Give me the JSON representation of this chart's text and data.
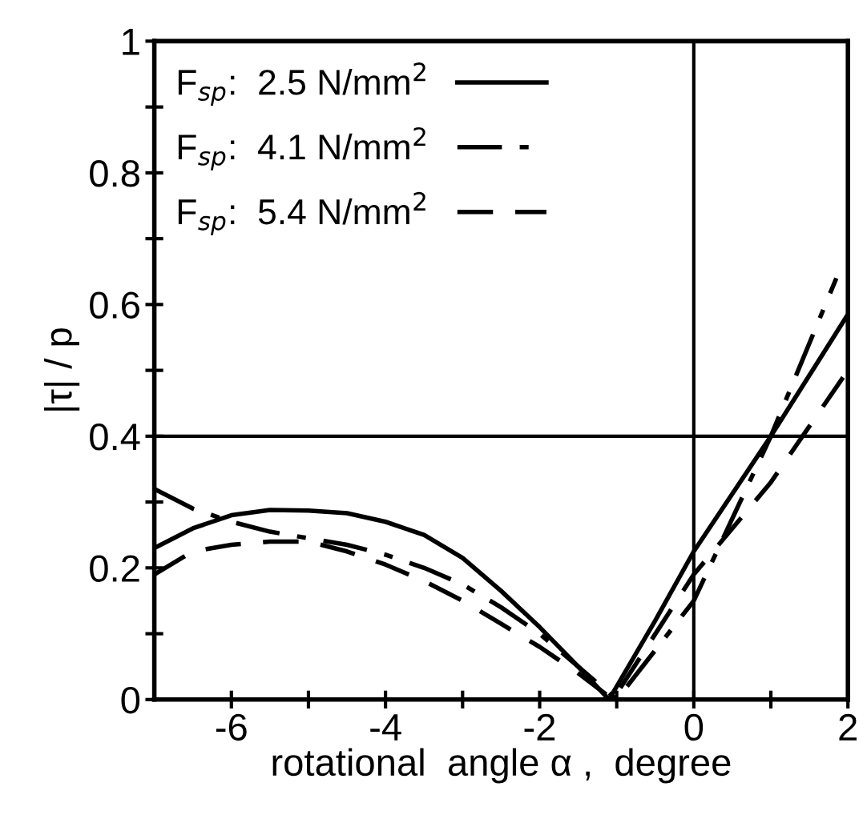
{
  "chart_data": {
    "type": "line",
    "xlabel": "rotational  angle α ,  degree",
    "ylabel": "|τ| / p",
    "xlim": [
      -7,
      2
    ],
    "ylim": [
      0,
      1
    ],
    "xticks": [
      -6,
      {
        "value": -5,
        "label": null
      },
      -4,
      {
        "value": -3,
        "label": null
      },
      -2,
      {
        "value": -1,
        "label": null
      },
      0,
      {
        "value": 1,
        "label": null
      },
      2
    ],
    "yticks": [
      0,
      {
        "value": 0.1,
        "label": null
      },
      0.2,
      {
        "value": 0.3,
        "label": null
      },
      0.4,
      {
        "value": 0.5,
        "label": null
      },
      0.6,
      {
        "value": 0.7,
        "label": null
      },
      0.8,
      {
        "value": 0.9,
        "label": null
      },
      1
    ],
    "legend": "top left",
    "grid": false,
    "ref_lines": [
      {
        "axis": "x",
        "value": 0,
        "color": "#000000",
        "line_style": "solid"
      },
      {
        "axis": "y",
        "value": 0.4,
        "color": "#000000",
        "line_style": "solid"
      }
    ],
    "series": [
      {
        "name": "F$_{sp}$:  2.5 N/mm$^{2}$",
        "color": "#000000",
        "line_style": "solid",
        "x": [
          -7,
          -6.5,
          -6,
          -5.5,
          -5,
          -4.5,
          -4,
          -3.5,
          -3,
          -2.5,
          -2,
          -1.5,
          -1.1,
          -0.5,
          0,
          1,
          2
        ],
        "values": [
          0.23,
          0.26,
          0.28,
          0.288,
          0.287,
          0.283,
          0.27,
          0.25,
          0.215,
          0.165,
          0.11,
          0.05,
          0,
          0.12,
          0.225,
          0.4,
          0.585
        ]
      },
      {
        "name": "F$_{sp}$:  4.1 N/mm$^{2}$",
        "color": "#000000",
        "line_style": "dashdot",
        "x": [
          -7,
          -6.5,
          -6,
          -5.5,
          -5,
          -4.5,
          -4,
          -3.5,
          -3,
          -2.5,
          -2,
          -1.5,
          -1,
          0,
          1,
          1.85
        ],
        "values": [
          0.32,
          0.29,
          0.27,
          0.255,
          0.245,
          0.235,
          0.22,
          0.2,
          0.175,
          0.14,
          0.1,
          0.05,
          0,
          0.15,
          0.4,
          0.64
        ]
      },
      {
        "name": "F$_{sp}$:  5.4 N/mm$^{2}$",
        "color": "#000000",
        "line_style": "dashed",
        "x": [
          -7,
          -6.5,
          -6,
          -5.5,
          -5,
          -4.5,
          -4,
          -3.5,
          -3,
          -2.5,
          -2,
          -1.5,
          -1.05,
          0,
          1,
          2
        ],
        "values": [
          0.19,
          0.225,
          0.235,
          0.24,
          0.24,
          0.225,
          0.205,
          0.18,
          0.15,
          0.115,
          0.08,
          0.04,
          0,
          0.19,
          0.33,
          0.5
        ]
      }
    ]
  }
}
